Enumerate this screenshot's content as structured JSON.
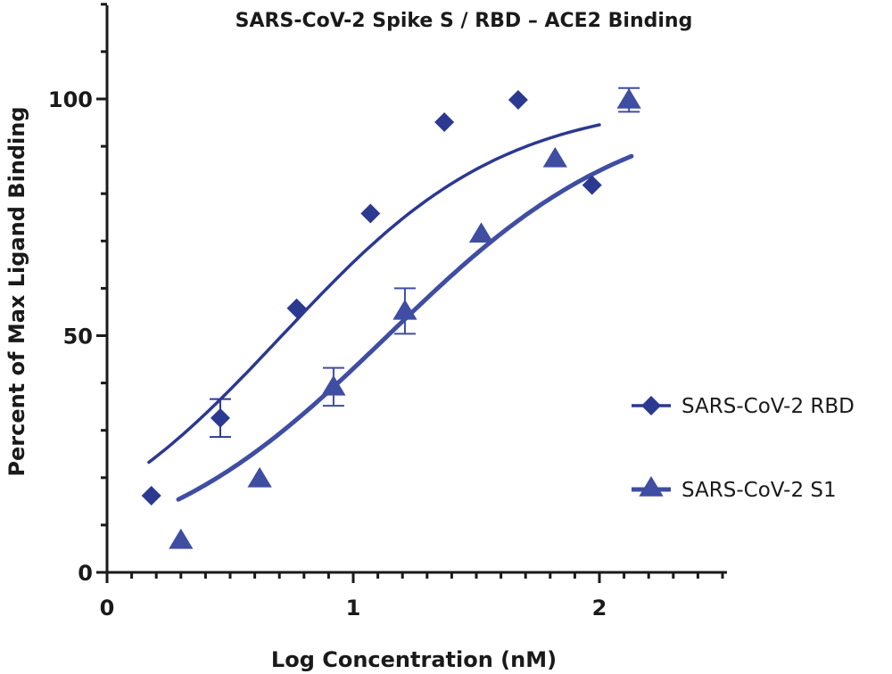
{
  "chart_data": {
    "type": "scatter",
    "title": "SARS-CoV-2 Spike S / RBD – ACE2 Binding",
    "xlabel": "Log Concentration (nM)",
    "ylabel": "Percent of Max Ligand Binding",
    "xlim": [
      0,
      2.5
    ],
    "ylim": [
      0,
      120
    ],
    "x_ticks": [
      0,
      1,
      2
    ],
    "y_ticks": [
      0,
      50,
      100
    ],
    "grid": false,
    "legend_position": "right",
    "series": [
      {
        "name": "SARS-CoV-2 RBD",
        "marker": "diamond",
        "color": "#2b3990",
        "points": [
          {
            "x": 0.18,
            "y": 16.2
          },
          {
            "x": 0.46,
            "y": 32.6,
            "err": 4.0
          },
          {
            "x": 0.77,
            "y": 55.8
          },
          {
            "x": 1.07,
            "y": 75.8
          },
          {
            "x": 1.37,
            "y": 95.1
          },
          {
            "x": 1.67,
            "y": 99.8
          },
          {
            "x": 1.97,
            "y": 81.8
          }
        ],
        "fit": {
          "bottom": 0,
          "top": 100,
          "logEC50": 0.71,
          "hill": 0.96,
          "x_range": [
            0.17,
            2.0
          ]
        }
      },
      {
        "name": "SARS-CoV-2 S1",
        "marker": "triangle",
        "color": "#3f4ea2",
        "points": [
          {
            "x": 0.3,
            "y": 6.8
          },
          {
            "x": 0.62,
            "y": 19.8
          },
          {
            "x": 0.92,
            "y": 39.2,
            "err": 4.0
          },
          {
            "x": 1.21,
            "y": 55.2,
            "err": 4.8
          },
          {
            "x": 1.52,
            "y": 71.5
          },
          {
            "x": 1.82,
            "y": 87.4
          },
          {
            "x": 2.12,
            "y": 99.8,
            "err": 2.5
          }
        ],
        "fit": {
          "bottom": 0,
          "top": 100,
          "logEC50": 1.14,
          "hill": 0.87,
          "x_range": [
            0.29,
            2.13
          ]
        }
      }
    ]
  }
}
